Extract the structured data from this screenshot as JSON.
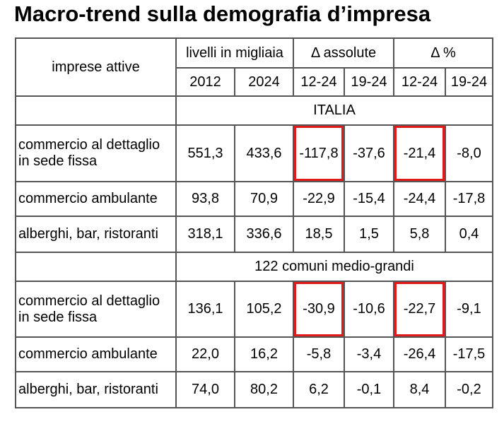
{
  "title": "Macro-trend sulla demografia d’impresa",
  "header": {
    "row_label": "imprese attive",
    "groups": [
      "livelli in migliaia",
      "Δ assolute",
      "Δ %"
    ],
    "years": [
      "2012",
      "2024",
      "12-24",
      "19-24",
      "12-24",
      "19-24"
    ]
  },
  "sections": [
    {
      "name": "ITALIA",
      "rows": [
        {
          "label": [
            "commercio al dettaglio",
            "in sede fissa"
          ],
          "values": [
            "551,3",
            "433,6",
            "-117,8",
            "-37,6",
            "-21,4",
            "-8,0"
          ]
        },
        {
          "label": [
            "commercio ambulante"
          ],
          "values": [
            "93,8",
            "70,9",
            "-22,9",
            "-15,4",
            "-24,4",
            "-17,8"
          ]
        },
        {
          "label": [
            "alberghi, bar, ristoranti"
          ],
          "values": [
            "318,1",
            "336,6",
            "18,5",
            "1,5",
            "5,8",
            "0,4"
          ]
        }
      ]
    },
    {
      "name": "122 comuni medio-grandi",
      "rows": [
        {
          "label": [
            "commercio al dettaglio",
            "in sede fissa"
          ],
          "values": [
            "136,1",
            "105,2",
            "-30,9",
            "-10,6",
            "-22,7",
            "-9,1"
          ]
        },
        {
          "label": [
            "commercio ambulante"
          ],
          "values": [
            "22,0",
            "16,2",
            "-5,8",
            "-3,4",
            "-26,4",
            "-17,5"
          ]
        },
        {
          "label": [
            "alberghi, bar, ristoranti"
          ],
          "values": [
            "74,0",
            "80,2",
            "6,2",
            "-0,1",
            "8,4",
            "-0,2"
          ]
        }
      ]
    }
  ],
  "highlight_color": "#e01b1b"
}
